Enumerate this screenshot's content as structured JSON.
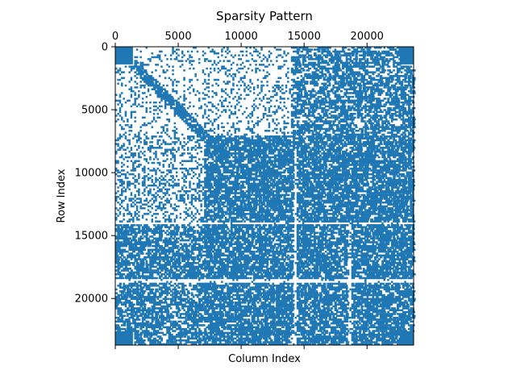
{
  "chart_data": {
    "type": "heatmap",
    "subtype": "sparsity-pattern",
    "title": "Sparsity Pattern",
    "xlabel": "Column Index",
    "ylabel": "Row Index",
    "matrix_size": [
      23700,
      23700
    ],
    "xlim": [
      0,
      23700
    ],
    "ylim": [
      23700,
      0
    ],
    "x_axis_position": "top",
    "x_ticks": [
      0,
      5000,
      10000,
      15000,
      20000
    ],
    "x_tick_labels": [
      "0",
      "5000",
      "10000",
      "15000",
      "20000"
    ],
    "y_ticks": [
      0,
      5000,
      10000,
      15000,
      20000
    ],
    "y_tick_labels": [
      "0",
      "5000",
      "10000",
      "15000",
      "20000"
    ],
    "marker_color": "#1f77b4",
    "grid": false,
    "dense_blocks": [
      {
        "rows": [
          0,
          1400
        ],
        "cols": [
          0,
          1400
        ]
      },
      {
        "rows": [
          0,
          1400
        ],
        "cols": [
          22600,
          23700
        ]
      },
      {
        "rows": [
          22600,
          23700
        ],
        "cols": [
          0,
          1400
        ]
      },
      {
        "rows": [
          22600,
          23700
        ],
        "cols": [
          22600,
          23700
        ]
      },
      {
        "rows": [
          7000,
          23700
        ],
        "cols": [
          7000,
          23700
        ]
      },
      {
        "rows": [
          14000,
          23700
        ],
        "cols": [
          0,
          7000
        ]
      },
      {
        "rows": [
          0,
          7000
        ],
        "cols": [
          13800,
          23700
        ]
      }
    ]
  }
}
